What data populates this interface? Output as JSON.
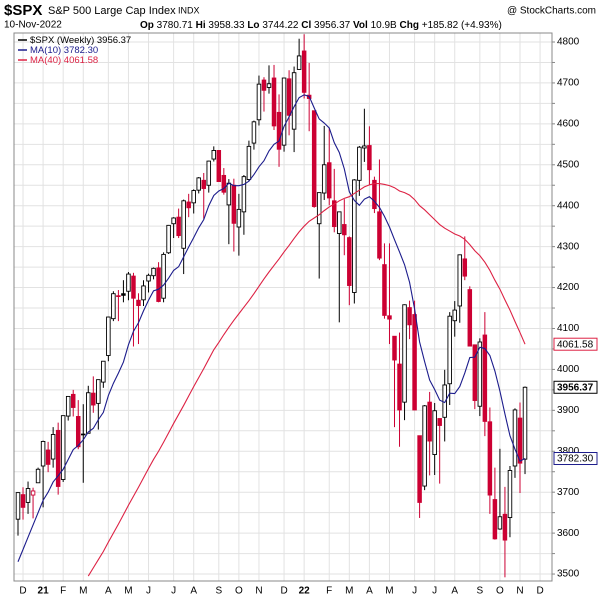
{
  "header": {
    "symbol": "$SPX",
    "name": "S&P 500 Large Cap Index",
    "exchange": "INDX",
    "source": "@ StockCharts.com",
    "date": "10-Nov-2022",
    "stat_labels": [
      "Op",
      "Hi",
      "Lo",
      "Cl",
      "Vol",
      "Chg"
    ],
    "volume": "10.9B",
    "change": "+185.82 (+4.93%)"
  },
  "chart_data": {
    "type": "candlestick",
    "name": "$SPX (Weekly)",
    "up_color": "#000000",
    "down_color": "#cc0033",
    "grid": true,
    "ylim": [
      3483,
      4822
    ],
    "yticks": [
      3500,
      3550,
      3600,
      3650,
      3700,
      3750,
      3800,
      3850,
      3900,
      3950,
      4000,
      4050,
      4100,
      4150,
      4200,
      4250,
      4300,
      4350,
      4400,
      4450,
      4500,
      4550,
      4600,
      4650,
      4700,
      4750,
      4800
    ],
    "categories": [
      null,
      "D",
      null,
      null,
      null,
      "21",
      null,
      null,
      null,
      "F",
      null,
      null,
      null,
      "M",
      null,
      null,
      null,
      null,
      "A",
      null,
      null,
      null,
      "M",
      null,
      null,
      null,
      "J",
      null,
      null,
      null,
      null,
      "J",
      null,
      null,
      null,
      "A",
      null,
      null,
      null,
      null,
      "S",
      null,
      null,
      null,
      "O",
      null,
      null,
      null,
      "N",
      null,
      null,
      null,
      null,
      "D",
      null,
      null,
      null,
      "22",
      null,
      null,
      null,
      null,
      "F",
      null,
      null,
      null,
      "M",
      null,
      null,
      null,
      "A",
      null,
      null,
      null,
      "M",
      null,
      null,
      null,
      null,
      "J",
      null,
      null,
      null,
      "J",
      null,
      null,
      null,
      "A",
      null,
      null,
      null,
      null,
      "S",
      null,
      null,
      null,
      "O",
      null,
      null,
      null,
      "N",
      null,
      null,
      null,
      "D",
      null
    ],
    "open": [
      3634,
      3694,
      3675,
      3693,
      3723,
      3764,
      3803,
      3781,
      3851,
      3731,
      3886,
      3939,
      3885,
      3842,
      3844,
      3942,
      3917,
      3969,
      4034,
      4124,
      4179,
      4185,
      4191,
      4228,
      4169,
      4170,
      4216,
      4229,
      4248,
      4174,
      4285,
      4356,
      4372,
      4296,
      4409,
      4407,
      4438,
      4462,
      4450,
      4514,
      4535,
      4474,
      4402,
      4450,
      4348,
      4385,
      4464,
      4553,
      4610,
      4707,
      4689,
      4712,
      4628,
      4548,
      4710,
      4587,
      4733,
      4778,
      4670,
      4632,
      4356,
      4431,
      4505,
      4412,
      4332,
      4354,
      4322,
      4188,
      4462,
      4541,
      4547,
      4462,
      4385,
      4256,
      4131,
      4081,
      4013,
      3920,
      4151,
      4134,
      3838,
      3715,
      3920,
      3792,
      3880,
      3883,
      3965,
      4119,
      4155,
      4270,
      4195,
      4060,
      3910,
      4084,
      3872,
      3682,
      3610,
      3646,
      3638,
      3764,
      3881,
      3780.71,
      null,
      null,
      null,
      null
    ],
    "high": [
      3699,
      3712,
      3726,
      3711,
      3760,
      3826,
      3823,
      3859,
      3870,
      3887,
      3934,
      3950,
      3925,
      3915,
      3960,
      3983,
      3975,
      4020,
      4129,
      4191,
      4194,
      4218,
      4238,
      4236,
      4186,
      4218,
      4234,
      4249,
      4262,
      4286,
      4353,
      4372,
      4393,
      4415,
      4429,
      4440,
      4470,
      4480,
      4510,
      4545,
      4536,
      4492,
      4465,
      4466,
      4429,
      4475,
      4559,
      4608,
      4718,
      4714,
      4743,
      4744,
      4672,
      4713,
      4731,
      4740,
      4808,
      4819,
      4749,
      4632,
      4432,
      4595,
      4590,
      4490,
      4385,
      4416,
      4325,
      4465,
      4546,
      4637,
      4594,
      4471,
      4513,
      4308,
      4308,
      4081,
      4090,
      4159,
      4168,
      4168,
      3838,
      3913,
      3945,
      3918,
      3880,
      3999,
      4140,
      4167,
      4281,
      4325,
      4203,
      4061,
      4076,
      4140,
      3907,
      3760,
      3806,
      3713,
      3764,
      3905,
      3919,
      3958.33,
      null,
      null,
      null,
      null
    ],
    "low": [
      3594,
      3633,
      3647,
      3636,
      3723,
      3663,
      3749,
      3760,
      3694,
      3725,
      3875,
      3885,
      3805,
      3723,
      3844,
      3894,
      3853,
      3955,
      4020,
      4118,
      4118,
      4164,
      4169,
      4056,
      4062,
      4155,
      4188,
      4220,
      4164,
      4164,
      4282,
      4321,
      4321,
      4233,
      4372,
      4381,
      4430,
      4368,
      4432,
      4508,
      4458,
      4427,
      4306,
      4288,
      4278,
      4329,
      4459,
      4537,
      4596,
      4630,
      4674,
      4585,
      4495,
      4532,
      4572,
      4531,
      4733,
      4662,
      4582,
      4395,
      4222,
      4414,
      4401,
      4335,
      4115,
      4279,
      4157,
      4161,
      4424,
      4507,
      4450,
      4382,
      4267,
      4124,
      4062,
      3859,
      3811,
      3876,
      4074,
      3900,
      3637,
      3705,
      3741,
      3742,
      3721,
      3824,
      3913,
      4080,
      4114,
      4218,
      4057,
      3903,
      3886,
      3837,
      3647,
      3584,
      3608,
      3492,
      3590,
      3735,
      3698,
      3744.22,
      null,
      null,
      null,
      null
    ],
    "close": [
      3699,
      3663,
      3709,
      3703,
      3756,
      3824,
      3768,
      3841,
      3714,
      3887,
      3934,
      3907,
      3811,
      3842,
      3943,
      3913,
      3975,
      4020,
      4128,
      4185,
      4180,
      4181,
      4233,
      4174,
      4156,
      4204,
      4230,
      4247,
      4166,
      4281,
      4352,
      4370,
      4327,
      4412,
      4395,
      4437,
      4468,
      4442,
      4509,
      4535,
      4459,
      4433,
      4455,
      4357,
      4391,
      4471,
      4545,
      4605,
      4697,
      4682,
      4698,
      4595,
      4538,
      4712,
      4621,
      4725,
      4766,
      4677,
      4662,
      4398,
      4432,
      4500,
      4419,
      4349,
      4385,
      4329,
      4205,
      4463,
      4543,
      4546,
      4488,
      4393,
      4272,
      4132,
      4123,
      4023,
      3901,
      4158,
      4109,
      3901,
      3675,
      3911,
      3825,
      3899,
      3863,
      3962,
      4130,
      4145,
      4280,
      4228,
      4057,
      3924,
      4067,
      3873,
      3693,
      3586,
      3640,
      3583,
      3753,
      3901,
      3771,
      3956.37,
      null,
      null,
      null,
      null
    ],
    "series": [
      {
        "name": "MA(10)",
        "color": "#1c1c8c",
        "values": [
          3530,
          3560,
          3590,
          3620,
          3650,
          3680,
          3700,
          3725,
          3740,
          3756,
          3780,
          3804,
          3814,
          3828,
          3847,
          3856,
          3877,
          3895,
          3936,
          3966,
          3991,
          4018,
          4060,
          4093,
          4114,
          4143,
          4169,
          4192,
          4196,
          4206,
          4223,
          4242,
          4251,
          4275,
          4299,
          4322,
          4346,
          4366,
          4400,
          4425,
          4436,
          4442,
          4455,
          4449,
          4449,
          4452,
          4460,
          4476,
          4495,
          4510,
          4534,
          4550,
          4558,
          4594,
          4617,
          4642,
          4664,
          4671,
          4667,
          4639,
          4612,
          4602,
          4590,
          4554,
          4530,
          4490,
          4434,
          4413,
          4401,
          4416,
          4422,
          4411,
          4396,
          4374,
          4348,
          4317,
          4287,
          4256,
          4213,
          4148,
          4067,
          4019,
          3974,
          3951,
          3925,
          3919,
          3942,
          3941,
          3958,
          3991,
          4029,
          4030,
          4054,
          4051,
          4034,
          3996,
          3947,
          3891,
          3838,
          3805,
          3776,
          3782.3,
          null,
          null,
          null,
          null
        ],
        "value_labels": [
          null,
          null,
          null,
          null,
          null,
          null,
          null,
          null,
          null,
          null,
          null,
          null,
          null,
          null,
          null,
          null,
          null,
          null,
          null,
          null,
          null,
          null,
          null,
          null,
          null,
          null,
          null,
          null,
          null,
          null,
          null,
          null,
          null,
          null,
          null,
          null,
          null,
          null,
          null,
          null,
          null,
          null,
          null,
          null,
          null,
          null,
          null,
          null,
          null,
          null,
          null,
          null,
          null,
          null,
          null,
          null,
          null,
          null,
          null,
          null,
          null,
          null,
          null,
          null,
          null,
          null,
          null,
          null,
          null,
          null,
          null,
          null,
          null,
          null,
          null,
          null,
          null,
          null,
          null,
          null,
          null,
          null,
          null,
          null,
          null,
          null,
          null,
          null,
          null,
          null,
          null,
          null,
          null,
          null,
          null,
          null,
          null,
          null,
          null,
          null,
          null,
          "3782.30",
          null,
          null,
          null,
          null
        ]
      },
      {
        "name": "MA(40)",
        "color": "#dd2244",
        "values": [
          null,
          null,
          null,
          null,
          null,
          null,
          null,
          null,
          null,
          null,
          null,
          null,
          null,
          null,
          3495,
          3515,
          3535,
          3555,
          3578,
          3600,
          3622,
          3645,
          3668,
          3690,
          3712,
          3735,
          3758,
          3780,
          3800,
          3822,
          3845,
          3868,
          3890,
          3912,
          3935,
          3958,
          3980,
          4002,
          4025,
          4048,
          4066,
          4085,
          4103,
          4120,
          4136,
          4152,
          4168,
          4185,
          4203,
          4221,
          4238,
          4254,
          4270,
          4287,
          4303,
          4320,
          4336,
          4350,
          4362,
          4370,
          4378,
          4388,
          4397,
          4404,
          4412,
          4418,
          4422,
          4430,
          4438,
          4446,
          4451,
          4454,
          4454,
          4452,
          4449,
          4444,
          4436,
          4432,
          4426,
          4415,
          4400,
          4390,
          4378,
          4366,
          4354,
          4345,
          4338,
          4331,
          4326,
          4318,
          4305,
          4290,
          4278,
          4262,
          4242,
          4218,
          4196,
          4170,
          4145,
          4117,
          4090,
          4061.58,
          null,
          null,
          null,
          null
        ]
      }
    ]
  }
}
